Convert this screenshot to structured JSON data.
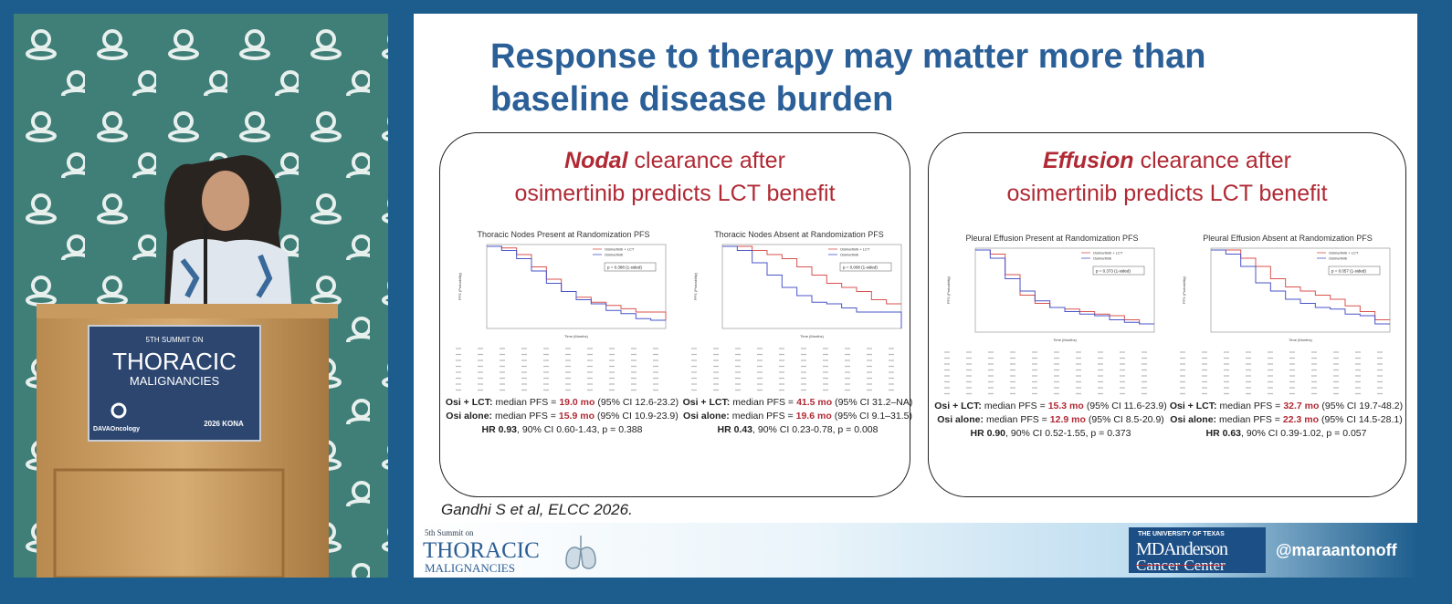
{
  "video": {
    "banner": {
      "line1": "5TH SUMMIT ON",
      "line2": "THORACIC",
      "line3": "MALIGNANCIES",
      "sponsor": "DAVAOncology",
      "event": "2026 KONA"
    }
  },
  "slide": {
    "title": [
      "Response to therapy may matter more than",
      "baseline disease burden"
    ],
    "panels": [
      {
        "heading": {
          "emphasis": "Nodal",
          "rest": "clearance after",
          "line2": "osimertinib predicts LCT benefit"
        },
        "plots": [
          {
            "title": "Thoracic Nodes Present at Randomization PFS",
            "legend": [
              "Osimertinib + LCT",
              "Osimertinib"
            ],
            "pvalue": "p = 0.388 (1-sided)",
            "xlabel": "Time (Months)",
            "ylabel": "PFS (Probability)",
            "stats": [
              {
                "arm": "Osi + LCT:",
                "text": "median PFS =",
                "value": "19.0 mo",
                "ci": "(95% CI 12.6-23.2)"
              },
              {
                "arm": "Osi alone:",
                "text": "median PFS =",
                "value": "15.9 mo",
                "ci": "(95% CI 10.9-23.9)"
              }
            ],
            "hr": {
              "label": "HR 0.93",
              "text": ", 90% CI 0.60-1.43, p = 0.388"
            }
          },
          {
            "title": "Thoracic Nodes Absent at Randomization PFS",
            "legend": [
              "Osimertinib + LCT",
              "Osimertinib"
            ],
            "pvalue": "p = 0.008 (1-sided)",
            "xlabel": "Time (Months)",
            "ylabel": "PFS (Probability)",
            "stats": [
              {
                "arm": "Osi + LCT:",
                "text": "median PFS =",
                "value": "41.5 mo",
                "ci": "(95% CI 31.2–NA)"
              },
              {
                "arm": "Osi alone:",
                "text": "median PFS =",
                "value": "19.6 mo",
                "ci": "(95% CI 9.1–31.5)"
              }
            ],
            "hr": {
              "label": "HR 0.43",
              "text": ", 90% CI 0.23-0.78, p = 0.008"
            }
          }
        ]
      },
      {
        "heading": {
          "emphasis": "Effusion",
          "rest": "clearance after",
          "line2": "osimertinib predicts LCT benefit"
        },
        "plots": [
          {
            "title": "Pleural Effusion Present at Randomization PFS",
            "legend": [
              "Osimertinib + LCT",
              "Osimertinib"
            ],
            "pvalue": "p = 0.373 (1-sided)",
            "xlabel": "Time (Months)",
            "ylabel": "PFS (Probability)",
            "stats": [
              {
                "arm": "Osi + LCT:",
                "text": "median PFS =",
                "value": "15.3 mo",
                "ci": "(95% CI 11.6-23.9)"
              },
              {
                "arm": "Osi alone:",
                "text": "median PFS =",
                "value": "12.9 mo",
                "ci": "(95% CI 8.5-20.9)"
              }
            ],
            "hr": {
              "label": "HR 0.90",
              "text": ", 90% CI 0.52-1.55, p = 0.373"
            }
          },
          {
            "title": "Pleural Effusion Absent at Randomization PFS",
            "legend": [
              "Osimertinib + LCT",
              "Osimertinib"
            ],
            "pvalue": "p = 0.057 (1-sided)",
            "xlabel": "Time (Months)",
            "ylabel": "PFS (Probability)",
            "stats": [
              {
                "arm": "Osi + LCT:",
                "text": "median PFS =",
                "value": "32.7 mo",
                "ci": "(95% CI 19.7-48.2)"
              },
              {
                "arm": "Osi alone:",
                "text": "median PFS =",
                "value": "22.3 mo",
                "ci": "(95% CI 14.5-28.1)"
              }
            ],
            "hr": {
              "label": "HR 0.63",
              "text": ", 90% CI 0.39-1.02, p = 0.057"
            }
          }
        ]
      }
    ],
    "citation": "Gandhi S et al, ELCC 2026."
  },
  "footer": {
    "summit": "5th Summit on",
    "thoracic": "THORACIC",
    "malignancies": "MALIGNANCIES",
    "university": "THE UNIVERSITY OF TEXAS",
    "mda": "MDAnderson",
    "center": "Cancer Center",
    "handle": "@maraantonoff"
  }
}
